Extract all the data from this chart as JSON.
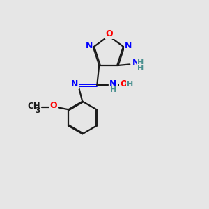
{
  "background_color": "#e6e6e6",
  "bond_color": "#1a1a1a",
  "nitrogen_color": "#0000ff",
  "oxygen_color": "#ff0000",
  "hydrogen_color": "#4a9090",
  "figsize": [
    3.0,
    3.0
  ],
  "dpi": 100,
  "xlim": [
    0,
    10
  ],
  "ylim": [
    0,
    10
  ]
}
